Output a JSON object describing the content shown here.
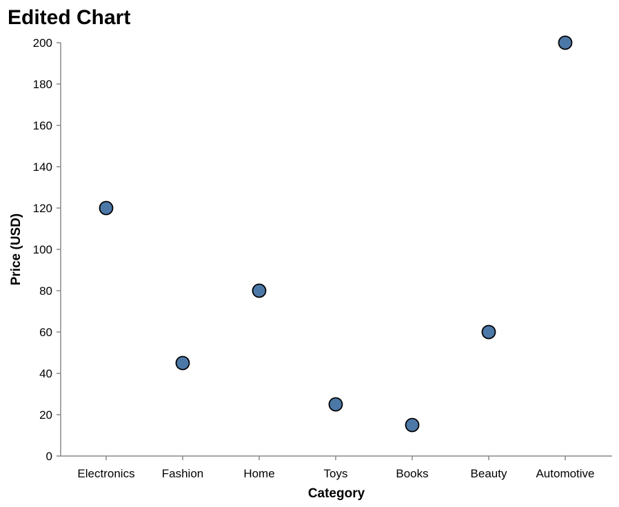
{
  "chart_data": {
    "type": "scatter",
    "title": "Edited Chart",
    "xlabel": "Category",
    "ylabel": "Price (USD)",
    "categories": [
      "Electronics",
      "Fashion",
      "Home",
      "Toys",
      "Books",
      "Beauty",
      "Automotive"
    ],
    "values": [
      120,
      45,
      80,
      25,
      15,
      60,
      200
    ],
    "ylim": [
      0,
      200
    ],
    "yticks": [
      0,
      20,
      40,
      60,
      80,
      100,
      120,
      140,
      160,
      180,
      200
    ],
    "grid": false,
    "colors": {
      "point_fill": "#4c78a8",
      "point_stroke": "#000000",
      "axis": "#888888",
      "text": "#000000"
    }
  }
}
